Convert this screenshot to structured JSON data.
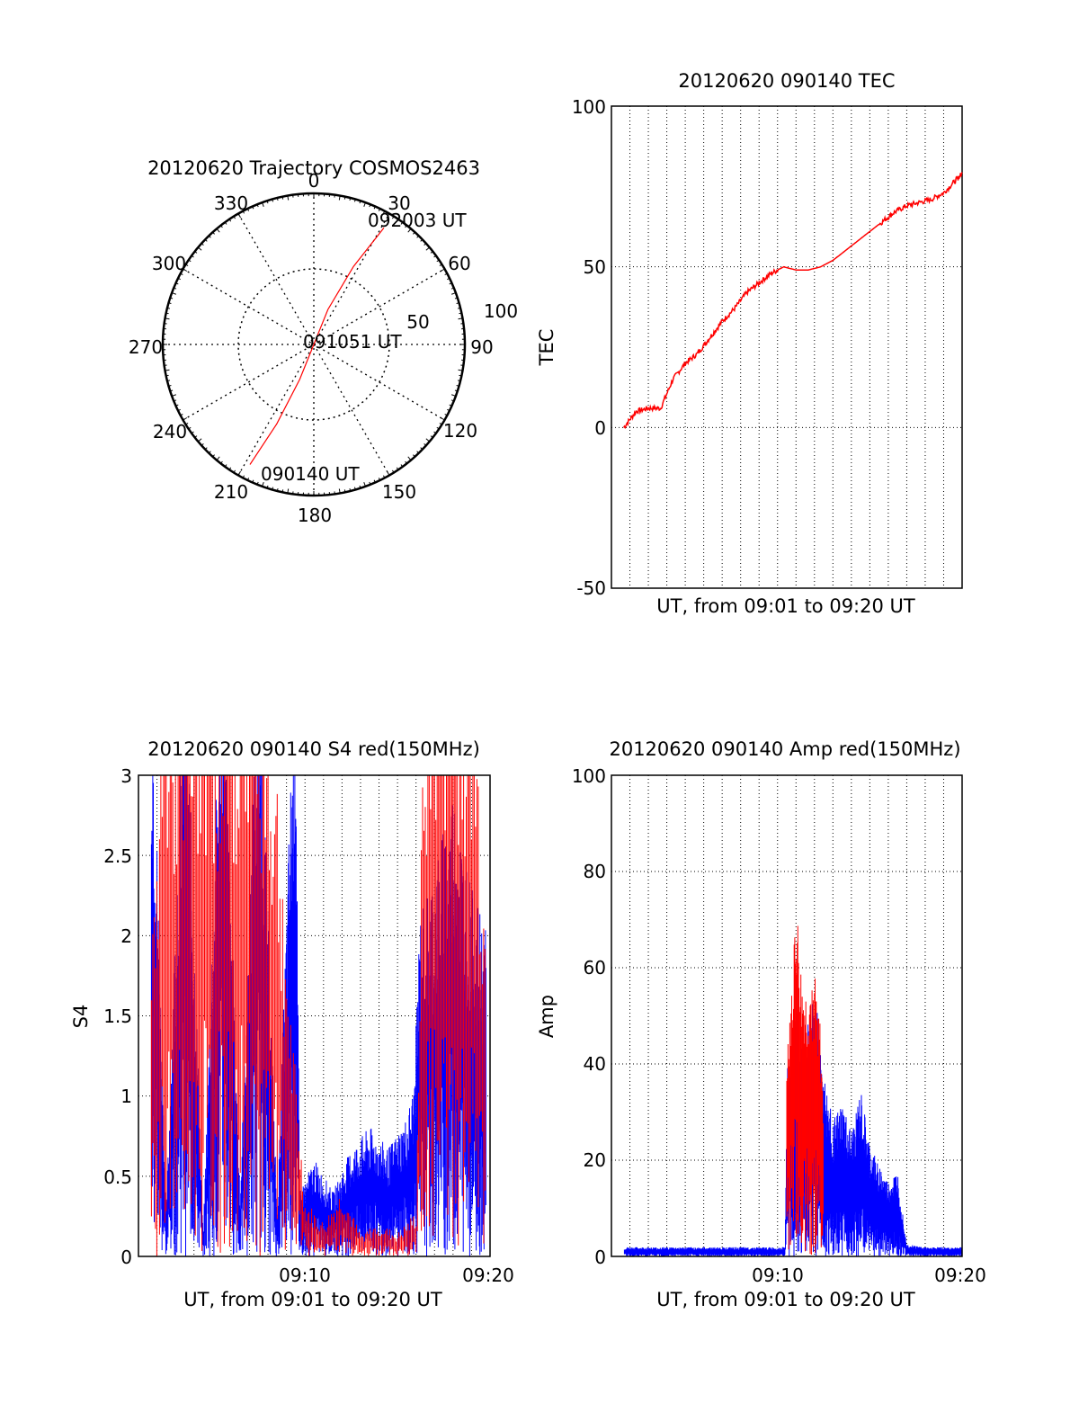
{
  "colors": {
    "red": "#ff0000",
    "blue": "#0000ff",
    "axis": "#000000",
    "grid": "#000000"
  },
  "charts": {
    "polar": {
      "title": "20120620 Trajectory COSMOS2463",
      "angle_labels": [
        "0",
        "30",
        "60",
        "90",
        "120",
        "150",
        "180",
        "210",
        "240",
        "270",
        "300",
        "330"
      ],
      "radius_labels": [
        "50",
        "100"
      ],
      "point_labels": {
        "start": "090140 UT",
        "mid": "091051 UT",
        "end": "092003 UT"
      }
    },
    "tec": {
      "title": "20120620 090140 TEC",
      "ylabel": "TEC",
      "xlabel": "UT, from 09:01 to 09:20 UT",
      "yticks": [
        "100",
        "50",
        "0",
        "-50"
      ]
    },
    "s4": {
      "title": "20120620 090140 S4 red(150MHz)",
      "ylabel": "S4",
      "xlabel": "UT, from 09:01 to 09:20 UT",
      "yticks": [
        "3",
        "2.5",
        "2",
        "1.5",
        "1",
        "0.5",
        "0"
      ],
      "xticks": [
        "09:10",
        "09:20"
      ]
    },
    "amp": {
      "title": "20120620 090140 Amp red(150MHz)",
      "ylabel": "Amp",
      "xlabel": "UT, from 09:01 to 09:20 UT",
      "yticks": [
        "100",
        "80",
        "60",
        "40",
        "20",
        "0"
      ],
      "xticks": [
        "09:10",
        "09:20"
      ]
    }
  },
  "chart_data": [
    {
      "type": "scatter",
      "subtype": "polar-trajectory",
      "title": "20120620 Trajectory COSMOS2463",
      "angle_unit": "degrees (azimuth, 0 at top, clockwise)",
      "radial_ticks": [
        50,
        100
      ],
      "series": [
        {
          "color": "#ff0000",
          "points": [
            {
              "azimuth": 208,
              "radius": 90,
              "label": "090140 UT"
            },
            {
              "azimuth": 205,
              "radius": 58
            },
            {
              "azimuth": 202,
              "radius": 25
            },
            {
              "azimuth": 180,
              "radius": 0,
              "label": "091051 UT"
            },
            {
              "azimuth": 22,
              "radius": 25
            },
            {
              "azimuth": 27,
              "radius": 58
            },
            {
              "azimuth": 31,
              "radius": 90,
              "label": "092003 UT"
            }
          ]
        }
      ]
    },
    {
      "type": "line",
      "title": "20120620 090140 TEC",
      "xlabel": "UT, from 09:01 to 09:20 UT",
      "ylabel": "TEC",
      "ylim": [
        -50,
        100
      ],
      "xlim": [
        "09:01",
        "09:20"
      ],
      "grid": true,
      "series": [
        {
          "color": "#ff0000",
          "x": [
            "09:01:40",
            "09:02:20",
            "09:03:00",
            "09:03:40",
            "09:04:20",
            "09:05:00",
            "09:05:40",
            "09:06:20",
            "09:07:00",
            "09:07:40",
            "09:08:20",
            "09:09:00",
            "09:09:40",
            "09:10:20",
            "09:11:00",
            "09:11:40",
            "09:12:20",
            "09:13:00",
            "09:13:40",
            "09:14:20",
            "09:15:00",
            "09:15:40",
            "09:16:20",
            "09:17:00",
            "09:17:40",
            "09:18:20",
            "09:19:00",
            "09:19:40",
            "09:20:00"
          ],
          "y": [
            0,
            5,
            6,
            6,
            15,
            20,
            23,
            28,
            33,
            37,
            42,
            45,
            48,
            50,
            49,
            49,
            50,
            52,
            55,
            58,
            61,
            64,
            67,
            69,
            70,
            71,
            73,
            77,
            79
          ]
        }
      ]
    },
    {
      "type": "line",
      "title": "20120620 090140 S4 red(150MHz)",
      "xlabel": "UT, from 09:01 to 09:20 UT",
      "ylabel": "S4",
      "ylim": [
        0,
        3
      ],
      "xlim": [
        "09:01",
        "09:20"
      ],
      "xticks": [
        "09:10",
        "09:20"
      ],
      "grid": true,
      "series": [
        {
          "color": "#0000ff",
          "note_x": "minutes",
          "x": [
            1.7,
            2.5,
            3.5,
            4.5,
            5.5,
            6.5,
            7.5,
            8.5,
            9.5,
            9.7,
            10.5,
            11.5,
            12.5,
            13.5,
            14.5,
            15.5,
            15.9,
            16.2,
            17.0,
            18.0,
            19.0,
            19.8
          ],
          "y": [
            3.0,
            0.2,
            3.0,
            0.1,
            3.0,
            0.3,
            3.0,
            0.2,
            3.0,
            0.3,
            0.45,
            0.3,
            0.5,
            0.6,
            0.5,
            0.65,
            0.8,
            1.6,
            1.8,
            2.2,
            1.7,
            1.5
          ]
        },
        {
          "color": "#ff0000",
          "x": [
            1.7,
            2.5,
            3.5,
            4.5,
            5.5,
            6.5,
            7.5,
            8.5,
            9.3,
            9.6,
            10.0,
            11.0,
            12.0,
            13.0,
            14.0,
            15.0,
            16.0,
            16.5,
            17.0,
            18.0,
            19.0,
            19.8
          ],
          "y": [
            1.4,
            3.0,
            2.5,
            3.0,
            2.8,
            3.0,
            3.0,
            2.2,
            1.0,
            0.7,
            0.25,
            0.15,
            0.3,
            0.1,
            0.15,
            0.1,
            0.2,
            3.0,
            3.0,
            3.0,
            3.0,
            1.5
          ]
        }
      ]
    },
    {
      "type": "line",
      "title": "20120620 090140 Amp red(150MHz)",
      "xlabel": "UT, from 09:01 to 09:20 UT",
      "ylabel": "Amp",
      "ylim": [
        0,
        100
      ],
      "xlim": [
        "09:01",
        "09:20"
      ],
      "xticks": [
        "09:10",
        "09:20"
      ],
      "grid": true,
      "series": [
        {
          "color": "#0000ff",
          "note_x": "minutes",
          "x": [
            1.7,
            5.0,
            8.0,
            10.4,
            10.5,
            11.0,
            11.5,
            12.0,
            12.5,
            13.0,
            13.5,
            14.0,
            14.5,
            15.0,
            15.5,
            16.0,
            16.5,
            17.0,
            18.0,
            19.0,
            20.0
          ],
          "y": [
            1.5,
            1.5,
            1.5,
            1.5,
            30,
            40,
            35,
            45,
            30,
            22,
            25,
            20,
            27,
            18,
            15,
            12,
            14,
            2,
            1.5,
            1.5,
            1.5
          ]
        },
        {
          "color": "#ff0000",
          "x": [
            10.5,
            10.8,
            11.0,
            11.3,
            11.6,
            12.0,
            12.3,
            12.5
          ],
          "y": [
            35,
            50,
            62,
            48,
            45,
            50,
            40,
            25
          ]
        }
      ]
    }
  ]
}
